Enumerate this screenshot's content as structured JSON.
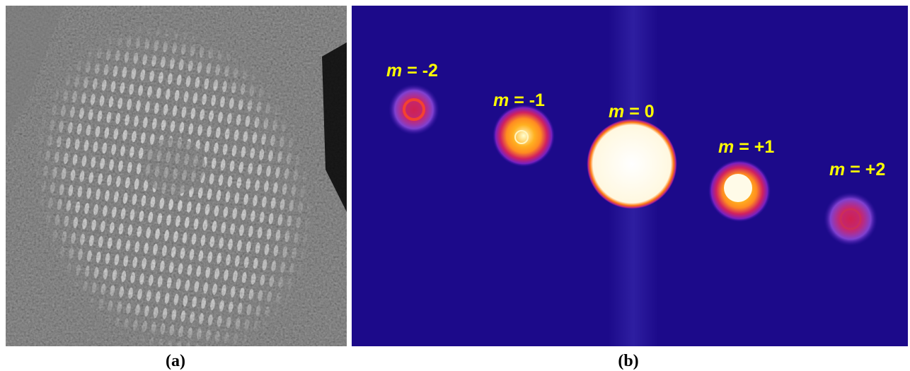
{
  "panels": [
    {
      "caption": "(a)"
    },
    {
      "caption": "(b)",
      "labels": [
        {
          "variable": "m",
          "text": "= -2"
        },
        {
          "variable": "m",
          "text": "= -1"
        },
        {
          "variable": "m",
          "text": "= 0"
        },
        {
          "variable": "m",
          "text": "= +1"
        },
        {
          "variable": "m",
          "text": "= +2"
        }
      ]
    }
  ]
}
